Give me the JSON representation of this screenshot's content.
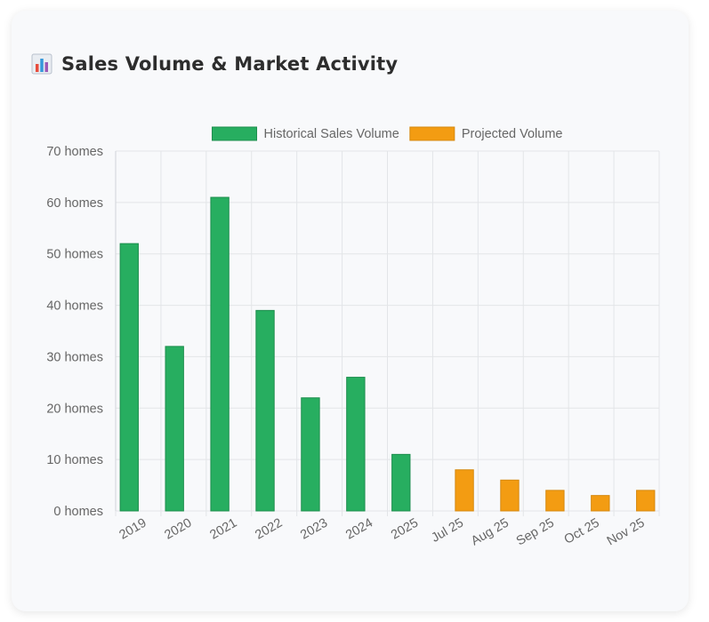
{
  "header": {
    "title": "Sales Volume & Market Activity",
    "icon": "bar-chart-icon"
  },
  "chart_data": {
    "type": "bar",
    "title": "Sales Volume & Market Activity",
    "xlabel": "",
    "ylabel": "",
    "ylim": [
      0,
      70
    ],
    "y_ticks": [
      0,
      10,
      20,
      30,
      40,
      50,
      60,
      70
    ],
    "y_tick_suffix": " homes",
    "grid": true,
    "legend_position": "top-center",
    "categories": [
      "2019",
      "2020",
      "2021",
      "2022",
      "2023",
      "2024",
      "2025",
      "Jul 25",
      "Aug 25",
      "Sep 25",
      "Oct 25",
      "Nov 25"
    ],
    "series": [
      {
        "name": "Historical Sales Volume",
        "color": "#27ae60",
        "border_color": "#1e8e4e",
        "values": [
          52,
          32,
          61,
          39,
          22,
          26,
          11,
          null,
          null,
          null,
          null,
          null
        ]
      },
      {
        "name": "Projected Volume",
        "color": "#f39c12",
        "border_color": "#d68910",
        "values": [
          null,
          null,
          null,
          null,
          null,
          null,
          null,
          8,
          6,
          4,
          3,
          4
        ]
      }
    ]
  }
}
